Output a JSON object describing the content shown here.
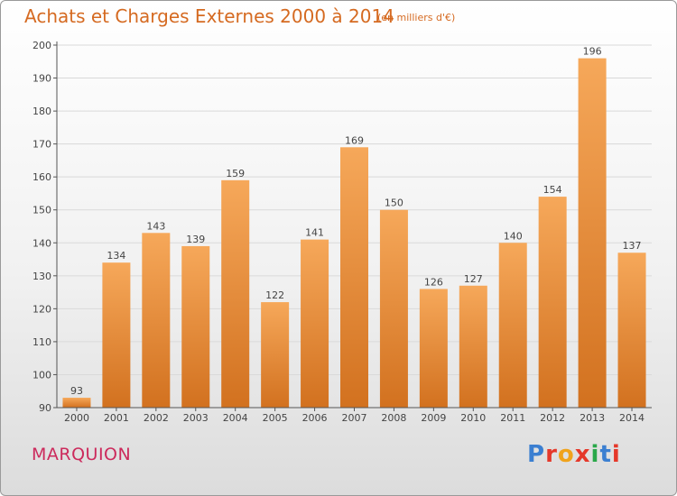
{
  "header": {
    "title": "Achats et Charges Externes 2000 à 2014",
    "subtitle": "(en milliers d'€)"
  },
  "footer": {
    "place": "MARQUION",
    "logo": "Proxiti"
  },
  "colors": {
    "title": "#d56a21",
    "place": "#cc2a5c",
    "bar_light": "#f6a85a",
    "bar_dark": "#d2711f",
    "grid": "#d9d9d9",
    "logo": [
      "#3b7fd1",
      "#e5382a",
      "#f0a31c",
      "#e5382a",
      "#2aa84a",
      "#3b7fd1",
      "#e5382a"
    ]
  },
  "chart_data": {
    "type": "bar",
    "title": "Achats et Charges Externes 2000 à 2014",
    "subtitle": "(en milliers d'€)",
    "categories": [
      "2000",
      "2001",
      "2002",
      "2003",
      "2004",
      "2005",
      "2006",
      "2007",
      "2008",
      "2009",
      "2010",
      "2011",
      "2012",
      "2013",
      "2014"
    ],
    "values": [
      93,
      134,
      143,
      139,
      159,
      122,
      141,
      169,
      150,
      126,
      127,
      140,
      154,
      196,
      137
    ],
    "ylim": [
      90,
      200
    ],
    "yticks": [
      90,
      100,
      110,
      120,
      130,
      140,
      150,
      160,
      170,
      180,
      190,
      200
    ],
    "grid": true,
    "legend": "none"
  }
}
